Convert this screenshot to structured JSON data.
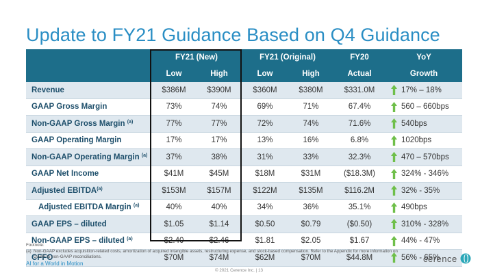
{
  "title": "Update to FY21 Guidance Based on Q4 Guidance",
  "table": {
    "group_headers": [
      "FY21 (New)",
      "FY21 (Original)",
      "FY20",
      "YoY"
    ],
    "sub_headers": [
      "Low",
      "High",
      "Low",
      "High",
      "Actual",
      "Growth"
    ],
    "rows": [
      {
        "label": "Revenue",
        "sup": "",
        "sub": false,
        "cells": [
          "$386M",
          "$390M",
          "$360M",
          "$380M",
          "$331.0M"
        ],
        "growth": "17% – 18%"
      },
      {
        "label": "GAAP Gross Margin",
        "sup": "",
        "sub": false,
        "cells": [
          "73%",
          "74%",
          "69%",
          "71%",
          "67.4%"
        ],
        "growth": "560 – 660bps"
      },
      {
        "label": "Non-GAAP Gross Margin",
        "sup": "(a)",
        "sub": false,
        "cells": [
          "77%",
          "77%",
          "72%",
          "74%",
          "71.6%"
        ],
        "growth": "540bps"
      },
      {
        "label": "GAAP Operating Margin",
        "sup": "",
        "sub": false,
        "cells": [
          "17%",
          "17%",
          "13%",
          "16%",
          "6.8%"
        ],
        "growth": "1020bps"
      },
      {
        "label": "Non-GAAP Operating Margin",
        "sup": "(a)",
        "sub": false,
        "cells": [
          "37%",
          "38%",
          "31%",
          "33%",
          "32.3%"
        ],
        "growth": "470 – 570bps"
      },
      {
        "label": "GAAP Net Income",
        "sup": "",
        "sub": false,
        "cells": [
          "$41M",
          "$45M",
          "$18M",
          "$31M",
          "($18.3M)"
        ],
        "growth": "324% - 346%"
      },
      {
        "label": "Adjusted EBITDA",
        "sup": "(a)",
        "sub": false,
        "cells": [
          "$153M",
          "$157M",
          "$122M",
          "$135M",
          "$116.2M"
        ],
        "growth": "32% - 35%"
      },
      {
        "label": "Adjusted EBITDA Margin",
        "sup": "(a)",
        "sub": true,
        "cells": [
          "40%",
          "40%",
          "34%",
          "36%",
          "35.1%"
        ],
        "growth": "490bps"
      },
      {
        "label": "GAAP EPS – diluted",
        "sup": "",
        "sub": false,
        "cells": [
          "$1.05",
          "$1.14",
          "$0.50",
          "$0.79",
          "($0.50)"
        ],
        "growth": "310% - 328%"
      },
      {
        "label": "Non-GAAP EPS – diluted",
        "sup": "(a)",
        "sub": false,
        "cells": [
          "$2.40",
          "$2.46",
          "$1.81",
          "$2.05",
          "$1.67"
        ],
        "growth": "44% - 47%"
      },
      {
        "label": "CFFO",
        "sup": "",
        "sub": false,
        "cells": [
          "$70M",
          "$74M",
          "$62M",
          "$70M",
          "$44.8M"
        ],
        "growth": "56% - 65%"
      }
    ]
  },
  "footnote": {
    "heading": "Footnote:",
    "a_tag": "(a)",
    "a_text": "Non-GAAP excludes acquisition-related costs, amortization of acquired intangible assets, restructuring expense, and stock-based compensation.    Refer to the Appendix for more information on GAAP to non-GAAP reconciliations."
  },
  "tagline": "AI for a World in Motion",
  "page_footer": "© 2021 Cerence Inc.  |  13",
  "logo_text": "cerence",
  "colors": {
    "title": "#2a8ec4",
    "header_bg": "#1d6e8a",
    "arrow": "#6fbf4a",
    "row_alt": "#dfe8ef"
  },
  "icons": {
    "growth": "up-arrow-icon",
    "logo": "cerence-logo-icon"
  }
}
